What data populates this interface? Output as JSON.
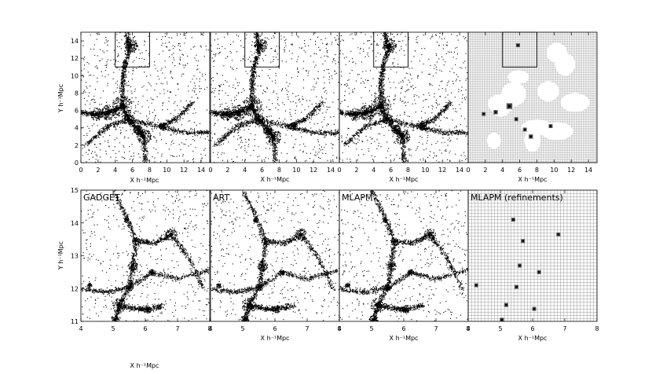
{
  "figure": {
    "colors": {
      "ink": "#000000",
      "paper": "#ffffff",
      "grid": "#9a9a9a",
      "cell": "#5a5a5a"
    },
    "top_row": {
      "xlabel": "X h⁻¹Mpc",
      "ylabel": "Y h⁻¹Mpc",
      "xlim": [
        0,
        15
      ],
      "ylim": [
        0,
        15
      ],
      "x_ticks": [
        "0",
        "2",
        "4",
        "6",
        "8",
        "10",
        "12",
        "14"
      ],
      "y_ticks": [
        "0",
        "2",
        "4",
        "6",
        "8",
        "10",
        "12",
        "14"
      ],
      "zoom_box": {
        "x": [
          4,
          8
        ],
        "y": [
          11,
          15
        ]
      },
      "panels": [
        {
          "kind": "particles"
        },
        {
          "kind": "particles"
        },
        {
          "kind": "particles"
        },
        {
          "kind": "refinements"
        }
      ]
    },
    "bottom_row": {
      "xlabel": "X h⁻¹Mpc",
      "ylabel": "Y h⁻¹Mpc",
      "xlim": [
        4,
        8
      ],
      "ylim": [
        11,
        15
      ],
      "x_ticks": [
        "4",
        "5",
        "6",
        "7",
        "8"
      ],
      "y_ticks": [
        "11",
        "12",
        "13",
        "14",
        "15"
      ],
      "panels": [
        {
          "label": "GADGET",
          "kind": "particles"
        },
        {
          "label": "ART",
          "kind": "particles"
        },
        {
          "label": "MLAPM",
          "kind": "particles"
        },
        {
          "label": "MLAPM (refinements)",
          "kind": "refinements"
        }
      ]
    },
    "structures": {
      "top_halos": [
        {
          "x": 4.8,
          "y": 6.5,
          "r": 0.75
        },
        {
          "x": 3.2,
          "y": 5.8,
          "r": 0.55
        },
        {
          "x": 1.8,
          "y": 5.6,
          "r": 0.45
        },
        {
          "x": 7.3,
          "y": 3.0,
          "r": 0.55
        },
        {
          "x": 6.6,
          "y": 3.8,
          "r": 0.35
        },
        {
          "x": 5.8,
          "y": 13.5,
          "r": 0.5
        },
        {
          "x": 9.6,
          "y": 4.2,
          "r": 0.3
        },
        {
          "x": 5.6,
          "y": 5.0,
          "r": 0.4
        }
      ],
      "top_filaments": [
        [
          [
            5.3,
            15
          ],
          [
            5.6,
            13
          ],
          [
            5.0,
            11
          ],
          [
            4.8,
            9
          ],
          [
            4.8,
            6.5
          ]
        ],
        [
          [
            0,
            5.8
          ],
          [
            1.8,
            5.6
          ],
          [
            3.2,
            5.8
          ],
          [
            4.8,
            6.5
          ]
        ],
        [
          [
            4.8,
            6.5
          ],
          [
            5.5,
            5.0
          ],
          [
            6.6,
            3.8
          ],
          [
            7.3,
            3.0
          ],
          [
            7.5,
            0
          ]
        ],
        [
          [
            0.5,
            2.0
          ],
          [
            3.0,
            4.2
          ],
          [
            5.5,
            5.0
          ],
          [
            9.0,
            4.2
          ],
          [
            12.0,
            3.5
          ],
          [
            15,
            3.5
          ]
        ],
        [
          [
            9.0,
            4.2
          ],
          [
            11,
            5.0
          ],
          [
            13,
            7.0
          ]
        ]
      ],
      "bottom_halos": [
        {
          "x": 5.18,
          "y": 11.5,
          "r": 0.14
        },
        {
          "x": 5.6,
          "y": 12.7,
          "r": 0.1
        },
        {
          "x": 6.8,
          "y": 13.65,
          "r": 0.12
        },
        {
          "x": 5.7,
          "y": 13.45,
          "r": 0.08
        },
        {
          "x": 6.05,
          "y": 11.38,
          "r": 0.08
        },
        {
          "x": 5.05,
          "y": 11.05,
          "r": 0.09
        },
        {
          "x": 5.5,
          "y": 12.05,
          "r": 0.07
        },
        {
          "x": 6.2,
          "y": 12.5,
          "r": 0.06
        },
        {
          "x": 4.25,
          "y": 12.1,
          "r": 0.05
        },
        {
          "x": 5.4,
          "y": 14.1,
          "r": 0.05
        }
      ],
      "bottom_filaments": [
        [
          [
            5.0,
            15
          ],
          [
            5.4,
            14.2
          ],
          [
            5.7,
            13.45
          ],
          [
            5.6,
            12.7
          ],
          [
            5.5,
            12.05
          ],
          [
            5.18,
            11.5
          ],
          [
            5.05,
            11.0
          ]
        ],
        [
          [
            5.7,
            13.45
          ],
          [
            6.3,
            13.4
          ],
          [
            6.8,
            13.65
          ],
          [
            7.3,
            13.0
          ],
          [
            7.8,
            12.0
          ]
        ],
        [
          [
            4.0,
            12.0
          ],
          [
            4.8,
            11.9
          ],
          [
            5.5,
            12.05
          ],
          [
            6.2,
            12.5
          ],
          [
            7.0,
            12.3
          ],
          [
            8.0,
            12.6
          ]
        ],
        [
          [
            5.18,
            11.5
          ],
          [
            5.7,
            11.4
          ],
          [
            6.05,
            11.38
          ],
          [
            6.6,
            11.5
          ]
        ]
      ]
    }
  }
}
